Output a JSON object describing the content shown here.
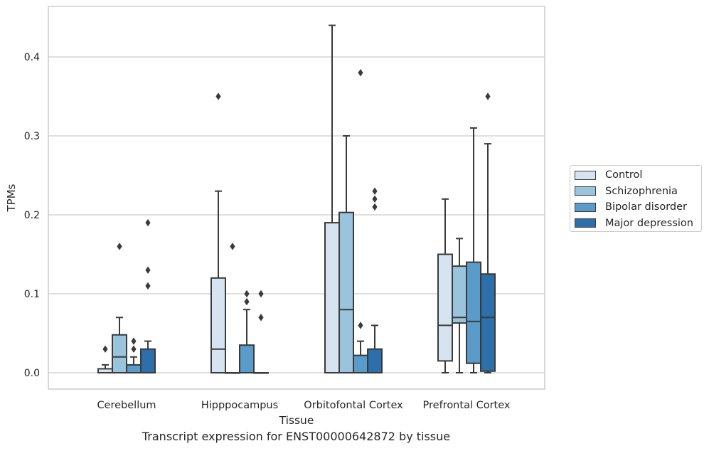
{
  "chart_data": {
    "type": "box",
    "title": "Transcript expression for ENST00000642872 by tissue",
    "xlabel": "Tissue",
    "ylabel": "TPMs",
    "ylim": [
      -0.021,
      0.464
    ],
    "yticks": [
      0.0,
      0.1,
      0.2,
      0.3,
      0.4
    ],
    "ytick_labels": [
      "0.0",
      "0.1",
      "0.2",
      "0.3",
      "0.4"
    ],
    "grid": "horizontal",
    "legend_placement": "right, outside plot",
    "categories": [
      "Cerebellum",
      "Hipppocampus",
      "Orbitofontal Cortex",
      "Prefrontal Cortex"
    ],
    "series": [
      {
        "name": "Control",
        "color": "#d6e4f2",
        "boxes": [
          {
            "whislo": 0.0,
            "q1": 0.0,
            "med": 0.0,
            "q3": 0.005,
            "whishi": 0.01,
            "fliers": [
              0.03
            ]
          },
          {
            "whislo": 0.0,
            "q1": 0.0,
            "med": 0.03,
            "q3": 0.12,
            "whishi": 0.23,
            "fliers": [
              0.35
            ]
          },
          {
            "whislo": 0.0,
            "q1": 0.0,
            "med": 0.0,
            "q3": 0.19,
            "whishi": 0.44,
            "fliers": []
          },
          {
            "whislo": 0.0,
            "q1": 0.015,
            "med": 0.06,
            "q3": 0.15,
            "whishi": 0.22,
            "fliers": []
          }
        ]
      },
      {
        "name": "Schizophrenia",
        "color": "#9ac3dd",
        "boxes": [
          {
            "whislo": 0.0,
            "q1": 0.0,
            "med": 0.02,
            "q3": 0.048,
            "whishi": 0.07,
            "fliers": [
              0.16
            ]
          },
          {
            "whislo": 0.0,
            "q1": 0.0,
            "med": 0.0,
            "q3": 0.0,
            "whishi": 0.0,
            "fliers": [
              0.16
            ]
          },
          {
            "whislo": 0.0,
            "q1": 0.0,
            "med": 0.08,
            "q3": 0.203,
            "whishi": 0.3,
            "fliers": []
          },
          {
            "whislo": 0.0,
            "q1": 0.063,
            "med": 0.07,
            "q3": 0.135,
            "whishi": 0.17,
            "fliers": []
          }
        ]
      },
      {
        "name": "Bipolar disorder",
        "color": "#5a9bc9",
        "boxes": [
          {
            "whislo": 0.0,
            "q1": 0.0,
            "med": 0.0,
            "q3": 0.01,
            "whishi": 0.02,
            "fliers": [
              0.03,
              0.04
            ]
          },
          {
            "whislo": 0.0,
            "q1": 0.0,
            "med": 0.0,
            "q3": 0.035,
            "whishi": 0.08,
            "fliers": [
              0.09,
              0.1
            ]
          },
          {
            "whislo": 0.0,
            "q1": 0.0,
            "med": 0.0,
            "q3": 0.022,
            "whishi": 0.04,
            "fliers": [
              0.06,
              0.38
            ]
          },
          {
            "whislo": 0.0,
            "q1": 0.012,
            "med": 0.065,
            "q3": 0.14,
            "whishi": 0.31,
            "fliers": []
          }
        ]
      },
      {
        "name": "Major depression",
        "color": "#2c6fab",
        "boxes": [
          {
            "whislo": 0.0,
            "q1": 0.0,
            "med": 0.0,
            "q3": 0.03,
            "whishi": 0.04,
            "fliers": [
              0.11,
              0.13,
              0.19
            ]
          },
          {
            "whislo": 0.0,
            "q1": 0.0,
            "med": 0.0,
            "q3": 0.0,
            "whishi": 0.0,
            "fliers": [
              0.07,
              0.1
            ]
          },
          {
            "whislo": 0.0,
            "q1": 0.0,
            "med": 0.0,
            "q3": 0.03,
            "whishi": 0.06,
            "fliers": [
              0.21,
              0.22,
              0.23
            ]
          },
          {
            "whislo": 0.0,
            "q1": 0.002,
            "med": 0.07,
            "q3": 0.125,
            "whishi": 0.29,
            "fliers": [
              0.35
            ]
          }
        ]
      }
    ]
  }
}
